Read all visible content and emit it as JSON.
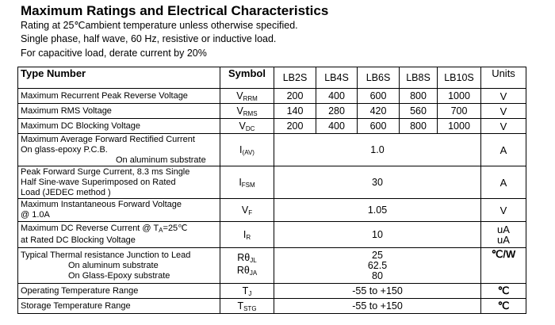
{
  "title": "Maximum Ratings and Electrical Characteristics",
  "notes": [
    "Rating at 25℃ambient temperature unless otherwise specified.",
    "Single phase, half wave, 60 Hz, resistive or inductive load.",
    "For capacitive load, derate current by 20%"
  ],
  "header": {
    "type_number": "Type Number",
    "symbol": "Symbol",
    "parts": [
      "LB2S",
      "LB4S",
      "LB6S",
      "LB8S",
      "LB10S"
    ],
    "units": "Units"
  },
  "rows": {
    "vrrm": {
      "param": "Maximum Recurrent Peak Reverse Voltage",
      "sym": "V",
      "sub": "RRM",
      "values": [
        "200",
        "400",
        "600",
        "800",
        "1000"
      ],
      "unit": "V"
    },
    "vrms": {
      "param": "Maximum RMS Voltage",
      "sym": "V",
      "sub": "RMS",
      "values": [
        "140",
        "280",
        "420",
        "560",
        "700"
      ],
      "unit": "V"
    },
    "vdc": {
      "param": "Maximum DC Blocking Voltage",
      "sym": "V",
      "sub": "DC",
      "values": [
        "200",
        "400",
        "600",
        "800",
        "1000"
      ],
      "unit": "V"
    },
    "iav": {
      "param_lines": [
        "Maximum Average Forward Rectified Current",
        "On glass-epoxy P.C.B.",
        "On aluminum substrate"
      ],
      "sym": "I",
      "sub": "(AV)",
      "value": "1.0",
      "unit": "A"
    },
    "ifsm": {
      "param_lines": [
        "Peak Forward Surge Current, 8.3 ms Single",
        "Half Sine-wave Superimposed on Rated",
        "Load (JEDEC method )"
      ],
      "sym": "I",
      "sub": "FSM",
      "value": "30",
      "unit": "A"
    },
    "vf": {
      "param_lines": [
        "Maximum Instantaneous Forward Voltage",
        "@ 1.0A"
      ],
      "sym": "V",
      "sub": "F",
      "value": "1.05",
      "unit": "V"
    },
    "ir": {
      "param_lines": [
        "Maximum DC Reverse Current @ T",
        "A",
        "=25℃",
        "at Rated DC Blocking Voltage"
      ],
      "sym": "I",
      "sub": "R",
      "value": "10",
      "units": [
        "uA",
        "uA"
      ]
    },
    "rth": {
      "param_lines": [
        "Typical Thermal resistance Junction to Lead",
        "On aluminum substrate",
        "On Glass-Epoxy substrate"
      ],
      "sym1": "Rθ",
      "sub1": "JL",
      "sym2": "Rθ",
      "sub2": "JA",
      "values": [
        "25",
        "62.5",
        "80"
      ],
      "unit": "℃/W"
    },
    "tj": {
      "param": "Operating Temperature Range",
      "sym": "T",
      "sub": "J",
      "value": "-55 to +150",
      "unit": "℃"
    },
    "tstg": {
      "param": "Storage Temperature Range",
      "sym": "T",
      "sub": "STG",
      "value": "-55 to +150",
      "unit": "℃"
    }
  }
}
